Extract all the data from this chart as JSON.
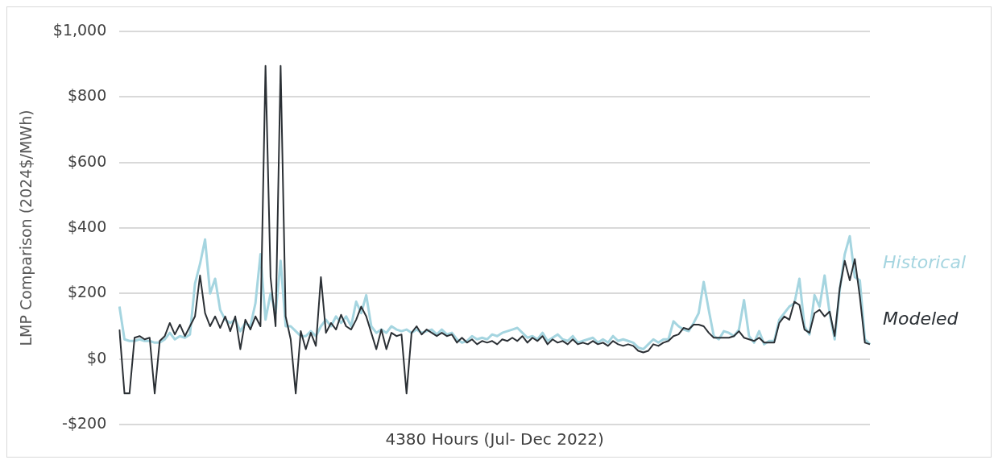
{
  "chart_data": {
    "type": "line",
    "xlabel": "4380 Hours (Jul- Dec 2022)",
    "ylabel": "LMP Comparison (2024$/MWh)",
    "categories": [
      null,
      null,
      null,
      null,
      null,
      null,
      null,
      null,
      null,
      null,
      null,
      null,
      null,
      null,
      null,
      null,
      null,
      null,
      null,
      null,
      null,
      null,
      null,
      null,
      null,
      null,
      null,
      null,
      null,
      null,
      null,
      null,
      null,
      null,
      null,
      null,
      null,
      null,
      null,
      null,
      null,
      null,
      null,
      null,
      null,
      null,
      null,
      null,
      null,
      null,
      null,
      null,
      null,
      null,
      null,
      null,
      null,
      null,
      null,
      null,
      null,
      null,
      null,
      null,
      null,
      null,
      null,
      null,
      null,
      null,
      null,
      null,
      null,
      null,
      null,
      null,
      null,
      null,
      null,
      null,
      null,
      null,
      null,
      null,
      null,
      null,
      null,
      null,
      null,
      null,
      null,
      null,
      null,
      null,
      null,
      null,
      null,
      null,
      null,
      null,
      null,
      null,
      null,
      null,
      null,
      null,
      null,
      null,
      null,
      null,
      null,
      null,
      null,
      null,
      null,
      null,
      null,
      null,
      null,
      null,
      null,
      null,
      null,
      null,
      null,
      null,
      null,
      null,
      null,
      null,
      null,
      null,
      null,
      null,
      null,
      null,
      null,
      null,
      null,
      null,
      null,
      null,
      null,
      null,
      null,
      null,
      null,
      null,
      null,
      null
    ],
    "series": [
      {
        "name": "Historical",
        "color": "#a5d5e0",
        "values": [
          160,
          60,
          55,
          55,
          60,
          55,
          55,
          50,
          50,
          60,
          80,
          60,
          70,
          65,
          75,
          230,
          290,
          365,
          200,
          245,
          150,
          120,
          110,
          120,
          85,
          110,
          100,
          170,
          320,
          120,
          200,
          140,
          300,
          100,
          100,
          85,
          70,
          70,
          85,
          70,
          100,
          120,
          100,
          130,
          110,
          130,
          100,
          175,
          140,
          195,
          100,
          80,
          90,
          80,
          100,
          90,
          85,
          90,
          80,
          90,
          80,
          85,
          90,
          75,
          90,
          75,
          80,
          60,
          50,
          55,
          70,
          60,
          65,
          60,
          75,
          70,
          80,
          85,
          90,
          95,
          80,
          65,
          70,
          60,
          80,
          55,
          65,
          75,
          60,
          55,
          70,
          50,
          55,
          60,
          65,
          50,
          60,
          50,
          70,
          55,
          60,
          55,
          50,
          35,
          30,
          45,
          60,
          50,
          60,
          60,
          115,
          100,
          90,
          85,
          110,
          140,
          235,
          150,
          70,
          60,
          85,
          80,
          70,
          90,
          180,
          70,
          50,
          85,
          45,
          55,
          55,
          120,
          140,
          160,
          170,
          245,
          100,
          75,
          195,
          160,
          255,
          140,
          60,
          210,
          320,
          375,
          250,
          240,
          60,
          45
        ]
      },
      {
        "name": "Modeled",
        "color": "#2b3035",
        "values": [
          90,
          -105,
          -105,
          65,
          70,
          60,
          65,
          -105,
          55,
          70,
          110,
          75,
          105,
          70,
          100,
          130,
          255,
          140,
          100,
          130,
          95,
          130,
          85,
          130,
          30,
          120,
          90,
          130,
          100,
          895,
          250,
          100,
          895,
          130,
          60,
          -105,
          85,
          30,
          80,
          40,
          250,
          80,
          110,
          90,
          135,
          100,
          90,
          120,
          160,
          130,
          80,
          30,
          90,
          30,
          80,
          70,
          75,
          -105,
          80,
          100,
          75,
          90,
          80,
          70,
          80,
          70,
          75,
          50,
          65,
          50,
          60,
          45,
          55,
          50,
          55,
          45,
          60,
          55,
          65,
          55,
          70,
          50,
          65,
          55,
          70,
          45,
          60,
          50,
          55,
          45,
          60,
          45,
          50,
          45,
          55,
          45,
          50,
          40,
          55,
          45,
          40,
          45,
          40,
          25,
          20,
          25,
          45,
          40,
          50,
          55,
          70,
          75,
          95,
          90,
          105,
          105,
          100,
          80,
          65,
          65,
          65,
          65,
          70,
          85,
          65,
          60,
          55,
          65,
          50,
          50,
          50,
          110,
          130,
          120,
          175,
          165,
          90,
          80,
          140,
          150,
          130,
          145,
          70,
          215,
          300,
          240,
          305,
          190,
          50,
          45
        ]
      }
    ],
    "ylim": [
      -200,
      1000
    ],
    "yticks": [
      {
        "value": -200,
        "label": "-$200"
      },
      {
        "value": 0,
        "label": "$0"
      },
      {
        "value": 200,
        "label": "$200"
      },
      {
        "value": 400,
        "label": "$400"
      },
      {
        "value": 600,
        "label": "$600"
      },
      {
        "value": 800,
        "label": "$800"
      },
      {
        "value": 1000,
        "label": "$1,000"
      }
    ],
    "grid": "y",
    "tick_labels": "y"
  }
}
